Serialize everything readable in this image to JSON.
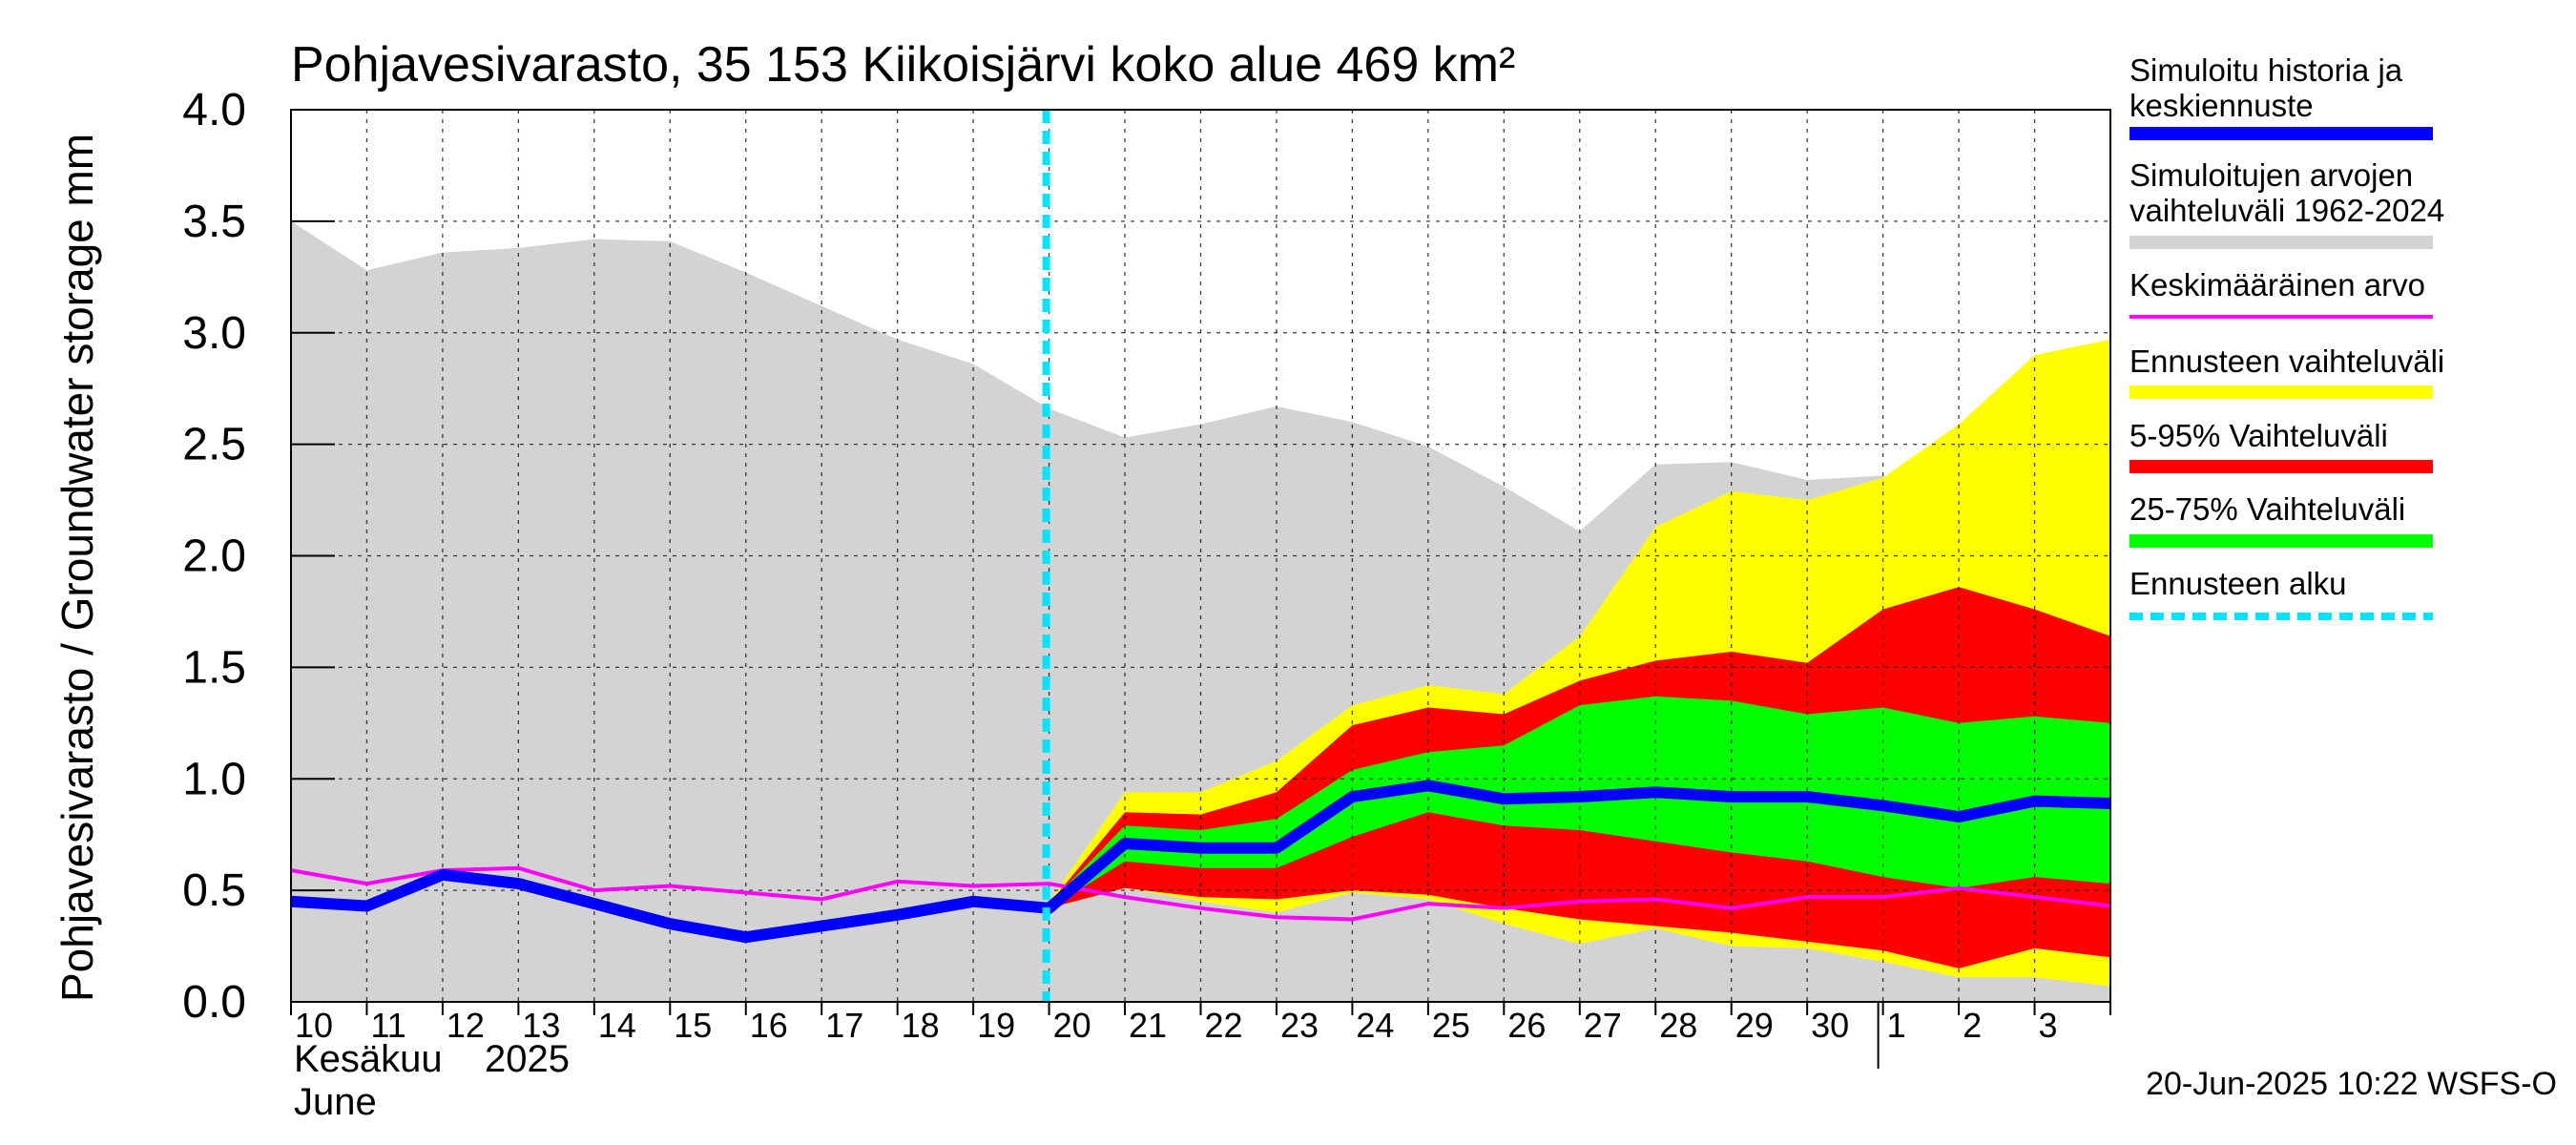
{
  "chart_data": {
    "type": "area",
    "title": "Pohjavesivarasto, 35 153 Kiikoisjärvi koko alue 469 km²",
    "ylabel": "Pohjavesivarasto / Groundwater storage   mm",
    "ylim": [
      0,
      4
    ],
    "yticks": [
      "0.0",
      "0.5",
      "1.0",
      "1.5",
      "2.0",
      "2.5",
      "3.0",
      "3.5",
      "4.0"
    ],
    "x_dates": [
      "2025-06-10",
      "2025-06-11",
      "2025-06-12",
      "2025-06-13",
      "2025-06-14",
      "2025-06-15",
      "2025-06-16",
      "2025-06-17",
      "2025-06-18",
      "2025-06-19",
      "2025-06-20",
      "2025-06-21",
      "2025-06-22",
      "2025-06-23",
      "2025-06-24",
      "2025-06-25",
      "2025-06-26",
      "2025-06-27",
      "2025-06-28",
      "2025-06-29",
      "2025-06-30",
      "2025-07-01",
      "2025-07-02",
      "2025-07-03",
      "2025-07-04"
    ],
    "xtick_labels": [
      "10",
      "11",
      "12",
      "13",
      "14",
      "15",
      "16",
      "17",
      "18",
      "19",
      "20",
      "21",
      "22",
      "23",
      "24",
      "25",
      "26",
      "27",
      "28",
      "29",
      "30",
      "1",
      "2",
      "3"
    ],
    "month_label_fi": "Kesäkuu",
    "year_label": "2025",
    "month_label_en": "June",
    "forecast_start": "2025-06-20",
    "grid": true,
    "legend_position": "right",
    "legend": [
      {
        "label": "Simuloitu historia ja keskiennuste",
        "color": "#0000ff",
        "style": "thick"
      },
      {
        "label": "Simuloitujen arvojen vaihteluväli 1962-2024",
        "color": "#d3d3d3",
        "style": "band"
      },
      {
        "label": "Keskimääräinen arvo",
        "color": "#ff00ff",
        "style": "line"
      },
      {
        "label": "Ennusteen vaihteluväli",
        "color": "#ffff00",
        "style": "band"
      },
      {
        "label": "5-95% Vaihteluväli",
        "color": "#ff0000",
        "style": "band"
      },
      {
        "label": "25-75% Vaihteluväli",
        "color": "#00ff00",
        "style": "band"
      },
      {
        "label": "Ennusteen alku",
        "color": "#00e5ff",
        "style": "dashed"
      }
    ],
    "series": [
      {
        "key": "hist_range_max",
        "values": [
          3.5,
          3.28,
          3.36,
          3.38,
          3.42,
          3.41,
          3.27,
          3.12,
          2.97,
          2.86,
          2.66,
          2.53,
          2.59,
          2.67,
          2.6,
          2.49,
          2.31,
          2.11,
          2.41,
          2.42,
          2.34,
          2.36,
          2.31,
          2.25,
          2.23
        ]
      },
      {
        "key": "hist_range_min",
        "values": [
          0,
          0,
          0,
          0,
          0,
          0,
          0,
          0,
          0,
          0,
          0,
          0,
          0,
          0,
          0,
          0,
          0,
          0,
          0,
          0,
          0,
          0,
          0,
          0,
          0
        ]
      },
      {
        "key": "mean",
        "values": [
          0.59,
          0.53,
          0.59,
          0.6,
          0.5,
          0.52,
          0.49,
          0.46,
          0.54,
          0.52,
          0.53,
          0.47,
          0.42,
          0.38,
          0.37,
          0.44,
          0.42,
          0.45,
          0.46,
          0.42,
          0.47,
          0.47,
          0.51,
          0.47,
          0.43
        ]
      },
      {
        "key": "forecast_max",
        "values": [
          null,
          null,
          null,
          null,
          null,
          null,
          null,
          null,
          null,
          null,
          0.45,
          0.94,
          0.94,
          1.08,
          1.33,
          1.42,
          1.38,
          1.64,
          2.13,
          2.29,
          2.25,
          2.35,
          2.59,
          2.9,
          2.97
        ]
      },
      {
        "key": "forecast_min",
        "values": [
          null,
          null,
          null,
          null,
          null,
          null,
          null,
          null,
          null,
          null,
          0.42,
          0.51,
          0.45,
          0.4,
          0.49,
          0.46,
          0.35,
          0.26,
          0.33,
          0.25,
          0.24,
          0.18,
          0.11,
          0.11,
          0.07
        ]
      },
      {
        "key": "p95",
        "values": [
          null,
          null,
          null,
          null,
          null,
          null,
          null,
          null,
          null,
          null,
          0.44,
          0.85,
          0.84,
          0.94,
          1.24,
          1.32,
          1.29,
          1.44,
          1.53,
          1.57,
          1.52,
          1.76,
          1.86,
          1.76,
          1.64
        ]
      },
      {
        "key": "p05",
        "values": [
          null,
          null,
          null,
          null,
          null,
          null,
          null,
          null,
          null,
          null,
          0.42,
          0.51,
          0.47,
          0.46,
          0.5,
          0.48,
          0.42,
          0.37,
          0.34,
          0.31,
          0.27,
          0.23,
          0.15,
          0.24,
          0.2
        ]
      },
      {
        "key": "p75",
        "values": [
          null,
          null,
          null,
          null,
          null,
          null,
          null,
          null,
          null,
          null,
          0.44,
          0.79,
          0.77,
          0.82,
          1.04,
          1.12,
          1.15,
          1.33,
          1.37,
          1.35,
          1.29,
          1.32,
          1.25,
          1.28,
          1.25
        ]
      },
      {
        "key": "p25",
        "values": [
          null,
          null,
          null,
          null,
          null,
          null,
          null,
          null,
          null,
          null,
          0.42,
          0.63,
          0.6,
          0.6,
          0.74,
          0.85,
          0.79,
          0.77,
          0.72,
          0.67,
          0.63,
          0.56,
          0.51,
          0.56,
          0.53
        ]
      },
      {
        "key": "median",
        "values": [
          0.45,
          0.43,
          0.57,
          0.53,
          0.44,
          0.35,
          0.29,
          0.34,
          0.39,
          0.45,
          0.42,
          0.71,
          0.69,
          0.69,
          0.92,
          0.97,
          0.91,
          0.92,
          0.94,
          0.92,
          0.92,
          0.88,
          0.83,
          0.9,
          0.89
        ]
      }
    ]
  },
  "footer": {
    "timestamp": "20-Jun-2025 10:22 WSFS-O"
  }
}
